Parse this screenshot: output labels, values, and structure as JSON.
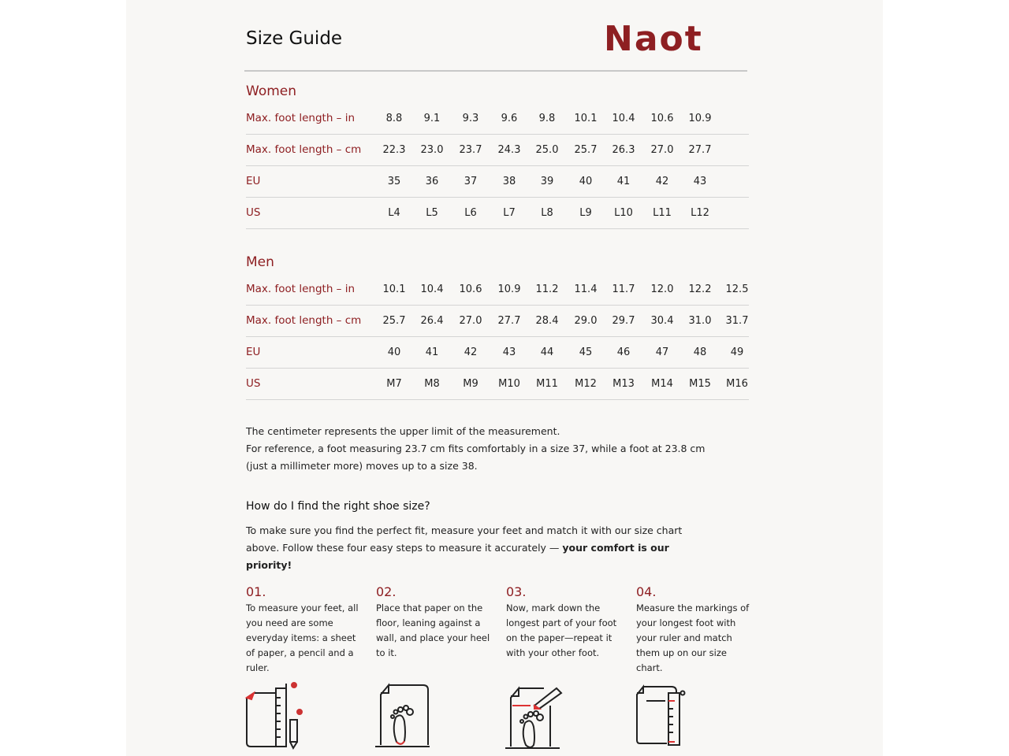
{
  "header": {
    "title": "Size Guide",
    "logo": "Naot"
  },
  "women": {
    "heading": "Women",
    "rows": [
      {
        "label": "Max. foot length – in",
        "values": [
          "8.8",
          "9.1",
          "9.3",
          "9.6",
          "9.8",
          "10.1",
          "10.4",
          "10.6",
          "10.9"
        ]
      },
      {
        "label": "Max. foot length – cm",
        "values": [
          "22.3",
          "23.0",
          "23.7",
          "24.3",
          "25.0",
          "25.7",
          "26.3",
          "27.0",
          "27.7"
        ]
      },
      {
        "label": "EU",
        "values": [
          "35",
          "36",
          "37",
          "38",
          "39",
          "40",
          "41",
          "42",
          "43"
        ]
      },
      {
        "label": "US",
        "values": [
          "L4",
          "L5",
          "L6",
          "L7",
          "L8",
          "L9",
          "L10",
          "L11",
          "L12"
        ]
      }
    ]
  },
  "men": {
    "heading": "Men",
    "rows": [
      {
        "label": "Max. foot length – in",
        "values": [
          "10.1",
          "10.4",
          "10.6",
          "10.9",
          "11.2",
          "11.4",
          "11.7",
          "12.0",
          "12.2",
          "12.5"
        ]
      },
      {
        "label": "Max. foot length – cm",
        "values": [
          "25.7",
          "26.4",
          "27.0",
          "27.7",
          "28.4",
          "29.0",
          "29.7",
          "30.4",
          "31.0",
          "31.7"
        ]
      },
      {
        "label": "EU",
        "values": [
          "40",
          "41",
          "42",
          "43",
          "44",
          "45",
          "46",
          "47",
          "48",
          "49"
        ]
      },
      {
        "label": "US",
        "values": [
          "M7",
          "M8",
          "M9",
          "M10",
          "M11",
          "M12",
          "M13",
          "M14",
          "M15",
          "M16"
        ]
      }
    ]
  },
  "note": {
    "lines": [
      "The centimeter represents the upper limit of the measurement.",
      "For reference, a foot measuring 23.7 cm fits comfortably in a size 37, while a foot at 23.8 cm",
      "(just a millimeter more) moves up to a size 38."
    ]
  },
  "howto": {
    "heading": "How do I find the right shoe size?",
    "text": "To make sure you find the perfect fit, measure your feet and match it with our size chart above. Follow these four easy steps to measure it accurately — ",
    "bold": "your comfort is our priority!"
  },
  "steps": [
    {
      "num": "01.",
      "text": "To measure your feet, all you need are some everyday items: a sheet of paper, a pencil and a ruler.",
      "icon": "paper-ruler-pencil-icon"
    },
    {
      "num": "02.",
      "text": "Place that paper on the floor, leaning against a wall, and place your heel to it.",
      "icon": "foot-on-paper-icon"
    },
    {
      "num": "03.",
      "text": "Now, mark down the longest part of your foot on the paper—repeat it with your other foot.",
      "icon": "mark-foot-icon"
    },
    {
      "num": "04.",
      "text": "Measure the markings of your longest foot with your ruler and match them up on our size chart.",
      "icon": "measure-ruler-icon"
    }
  ],
  "colors": {
    "accent": "#8e1f22",
    "background": "#f8f7f5"
  }
}
